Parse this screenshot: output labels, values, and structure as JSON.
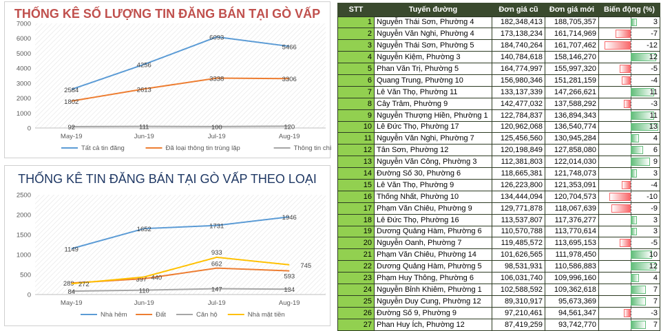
{
  "chart_data": [
    {
      "type": "line",
      "title": "THỐNG KÊ SỐ LƯỢNG TIN ĐĂNG BÁN TẠI GÒ VẤP",
      "categories": [
        "May-19",
        "Jun-19",
        "Jul-19",
        "Aug-19"
      ],
      "ylim": [
        0,
        7000
      ],
      "yticks": [
        0,
        1000,
        2000,
        3000,
        4000,
        5000,
        6000,
        7000
      ],
      "grid": false,
      "legend": "bottom",
      "series": [
        {
          "name": "Tất cả tin đăng",
          "color": "#5b9bd5",
          "values": [
            2584,
            4256,
            6093,
            5466
          ]
        },
        {
          "name": "Đã loại thông tin trùng lặp",
          "color": "#ed7d31",
          "values": [
            1802,
            2613,
            3338,
            3306
          ]
        },
        {
          "name": "Thông tin chính chủ",
          "color": "#a5a5a5",
          "values": [
            92,
            111,
            100,
            120
          ]
        }
      ]
    },
    {
      "type": "line",
      "title": "THỐNG KÊ TIN ĐĂNG BÁN TẠI GÒ VẤP THEO LOẠI",
      "categories": [
        "May-19",
        "Jun-19",
        "Jul-19",
        "Aug-19"
      ],
      "ylim": [
        0,
        2500
      ],
      "yticks": [
        0,
        500,
        1000,
        1500,
        2000,
        2500
      ],
      "grid": false,
      "legend": "bottom",
      "series": [
        {
          "name": "Nhà hẻm",
          "color": "#5b9bd5",
          "values": [
            1149,
            1652,
            1731,
            1946
          ]
        },
        {
          "name": "Đất",
          "color": "#ed7d31",
          "values": [
            289,
            397,
            662,
            593
          ]
        },
        {
          "name": "Căn hộ",
          "color": "#a5a5a5",
          "values": [
            84,
            110,
            147,
            134
          ]
        },
        {
          "name": "Nhà mặt tiền",
          "color": "#ffc000",
          "values": [
            272,
            440,
            933,
            745
          ]
        }
      ]
    },
    {
      "type": "table",
      "columns": [
        "STT",
        "Tuyến đường",
        "Đơn giá cũ",
        "Đơn giá mới",
        "Biến động (%)"
      ],
      "rows": [
        [
          "1",
          "Nguyễn Thái Sơn, Phường 4",
          "182,348,413",
          "188,705,357",
          "3"
        ],
        [
          "2",
          "Nguyễn Văn Nghi, Phường 4",
          "173,138,234",
          "161,714,969",
          "-7"
        ],
        [
          "3",
          "Nguyễn Thái Sơn, Phường 5",
          "184,740,264",
          "161,707,462",
          "-12"
        ],
        [
          "4",
          "Nguyễn Kiệm, Phường 3",
          "140,784,618",
          "158,146,270",
          "12"
        ],
        [
          "5",
          "Phan Văn Trị, Phường 5",
          "164,774,997",
          "155,997,320",
          "-5"
        ],
        [
          "6",
          "Quang Trung, Phường 10",
          "156,980,346",
          "151,281,159",
          "-4"
        ],
        [
          "7",
          "Lê Văn Thọ, Phường 11",
          "133,137,339",
          "147,266,621",
          "11"
        ],
        [
          "8",
          "Cây Trâm, Phường 9",
          "142,477,032",
          "137,588,292",
          "-3"
        ],
        [
          "9",
          "Nguyễn Thượng Hiền, Phường 1",
          "122,784,837",
          "136,894,343",
          "11"
        ],
        [
          "10",
          "Lê Đức Thọ, Phường 17",
          "120,962,068",
          "136,540,774",
          "13"
        ],
        [
          "11",
          "Nguyễn Văn Nghi, Phường 7",
          "125,456,560",
          "130,945,284",
          "4"
        ],
        [
          "12",
          "Tân Sơn, Phường 12",
          "120,198,849",
          "127,858,080",
          "6"
        ],
        [
          "13",
          "Nguyễn Văn Công, Phường 3",
          "112,381,803",
          "122,014,030",
          "9"
        ],
        [
          "14",
          "Đường Số 30, Phường 6",
          "118,665,381",
          "121,748,073",
          "3"
        ],
        [
          "15",
          "Lê Văn Thọ, Phường 9",
          "126,223,800",
          "121,353,091",
          "-4"
        ],
        [
          "16",
          "Thống Nhất, Phường 10",
          "134,444,094",
          "120,704,573",
          "-10"
        ],
        [
          "17",
          "Phạm Văn Chiêu, Phường 9",
          "129,771,878",
          "118,067,639",
          "-9"
        ],
        [
          "18",
          "Lê Đức Thọ, Phường 16",
          "113,537,807",
          "117,376,277",
          "3"
        ],
        [
          "19",
          "Dương Quảng Hàm, Phường 6",
          "110,570,788",
          "113,770,614",
          "3"
        ],
        [
          "20",
          "Nguyễn Oanh, Phường 7",
          "119,485,572",
          "113,695,153",
          "-5"
        ],
        [
          "21",
          "Phạm Văn Chiêu, Phường 14",
          "101,626,565",
          "111,978,450",
          "10"
        ],
        [
          "22",
          "Dương Quảng Hàm, Phường 5",
          "98,531,931",
          "110,586,883",
          "12"
        ],
        [
          "23",
          "Phạm Huy Thông, Phường 6",
          "106,031,740",
          "109,996,160",
          "4"
        ],
        [
          "24",
          "Nguyễn Bỉnh Khiêm, Phường 1",
          "102,588,592",
          "109,362,618",
          "7"
        ],
        [
          "25",
          "Nguyễn Duy Cung, Phường 12",
          "89,310,917",
          "95,673,369",
          "7"
        ],
        [
          "26",
          "Đường Số 9, Phường 9",
          "97,210,461",
          "94,561,347",
          "-3"
        ],
        [
          "27",
          "Phan Huy Ích, Phường 12",
          "87,419,259",
          "93,742,770",
          "7"
        ]
      ]
    }
  ]
}
